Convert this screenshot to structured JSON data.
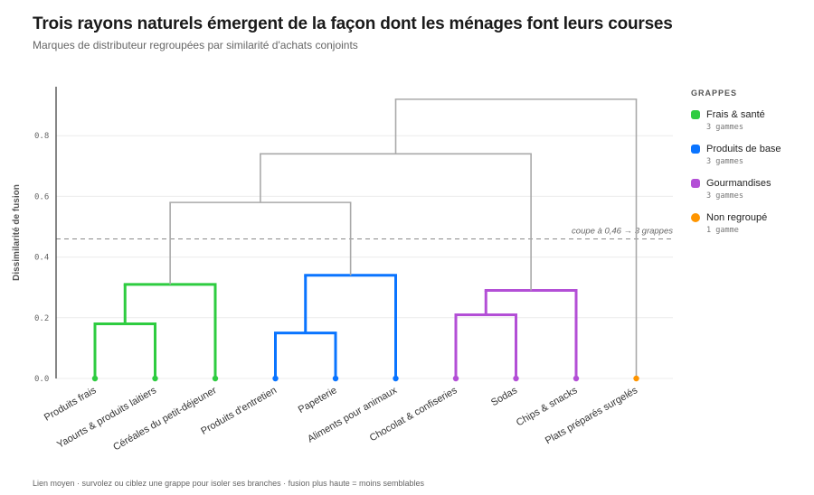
{
  "header": {
    "title": "Trois rayons naturels émergent de la façon dont les ménages font leurs courses",
    "subtitle": "Marques de distributeur regroupées par similarité d'achats conjoints"
  },
  "legend": {
    "title": "GRAPPES",
    "items": [
      {
        "label": "Frais & santé",
        "count": "3 gammes",
        "color": "#2ecc40",
        "shape": "square"
      },
      {
        "label": "Produits de base",
        "count": "3 gammes",
        "color": "#0a74ff",
        "shape": "square"
      },
      {
        "label": "Gourmandises",
        "count": "3 gammes",
        "color": "#b34fd6",
        "shape": "square"
      },
      {
        "label": "Non regroupé",
        "count": "1 gamme",
        "color": "#ff9500",
        "shape": "circle"
      }
    ]
  },
  "footer": "Lien moyen · survolez ou ciblez une grappe pour isoler ses branches · fusion plus haute = moins semblables",
  "chart_data": {
    "type": "dendrogram",
    "ylabel": "Dissimilarité de fusion",
    "ylim": [
      0,
      1.0
    ],
    "yticks": [
      "0.0",
      "0.2",
      "0.4",
      "0.6",
      "0.8"
    ],
    "grid": true,
    "cut": {
      "value": 0.46,
      "label": "coupe à 0,46 → 3 grappes"
    },
    "leaves": [
      {
        "name": "Produits frais",
        "cluster": 0
      },
      {
        "name": "Yaourts & produits laitiers",
        "cluster": 0
      },
      {
        "name": "Céréales du petit-déjeuner",
        "cluster": 0
      },
      {
        "name": "Produits d'entretien",
        "cluster": 1
      },
      {
        "name": "Papeterie",
        "cluster": 1
      },
      {
        "name": "Aliments pour animaux",
        "cluster": 1
      },
      {
        "name": "Chocolat & confiseries",
        "cluster": 2
      },
      {
        "name": "Sodas",
        "cluster": 2
      },
      {
        "name": "Chips & snacks",
        "cluster": 2
      },
      {
        "name": "Plats préparés surgelés",
        "cluster": 3
      }
    ],
    "merges": [
      {
        "id": "a",
        "children": [
          "L0",
          "L1"
        ],
        "height": 0.18,
        "cluster": 0
      },
      {
        "id": "b",
        "children": [
          "a",
          "L2"
        ],
        "height": 0.31,
        "cluster": 0
      },
      {
        "id": "c",
        "children": [
          "L3",
          "L4"
        ],
        "height": 0.15,
        "cluster": 1
      },
      {
        "id": "d",
        "children": [
          "c",
          "L5"
        ],
        "height": 0.34,
        "cluster": 1
      },
      {
        "id": "e",
        "children": [
          "L6",
          "L7"
        ],
        "height": 0.21,
        "cluster": 2
      },
      {
        "id": "f",
        "children": [
          "e",
          "L8"
        ],
        "height": 0.29,
        "cluster": 2
      },
      {
        "id": "g",
        "children": [
          "b",
          "d"
        ],
        "height": 0.58,
        "cluster": -1
      },
      {
        "id": "h",
        "children": [
          "g",
          "f"
        ],
        "height": 0.74,
        "cluster": -1
      },
      {
        "id": "i",
        "children": [
          "h",
          "L9"
        ],
        "height": 0.92,
        "cluster": -1
      }
    ]
  }
}
